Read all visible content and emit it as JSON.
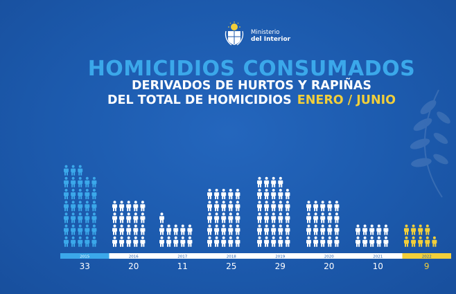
{
  "header": {
    "logo_line1": "Ministerio",
    "logo_line2": "del Interior"
  },
  "title": {
    "line1": "HOMICIDIOS CONSUMADOS",
    "line2": "DERIVADOS DE HURTOS Y RAPIÑAS",
    "line3_main": "DEL TOTAL DE HOMICIDIOS",
    "line3_highlight": "ENERO / JUNIO"
  },
  "chart_data": {
    "type": "bar",
    "categories": [
      "2015",
      "2016",
      "2017",
      "2018",
      "2019",
      "2020",
      "2021",
      "2022"
    ],
    "values": [
      33,
      20,
      11,
      25,
      29,
      20,
      10,
      9
    ],
    "title": "HOMICIDIOS CONSUMADOS",
    "subtitle": "DERIVADOS DE HURTOS Y RAPIÑAS DEL TOTAL DE HOMICIDIOS ENERO / JUNIO",
    "xlabel": "",
    "ylabel": "",
    "grid": false,
    "legend": "none",
    "colors": {
      "2015": "#3ba8ea",
      "2016": "#ffffff",
      "2017": "#ffffff",
      "2018": "#ffffff",
      "2019": "#ffffff",
      "2020": "#ffffff",
      "2021": "#ffffff",
      "2022": "#f2cf3a"
    },
    "icon": "person-icon",
    "people_per_row": 5
  }
}
